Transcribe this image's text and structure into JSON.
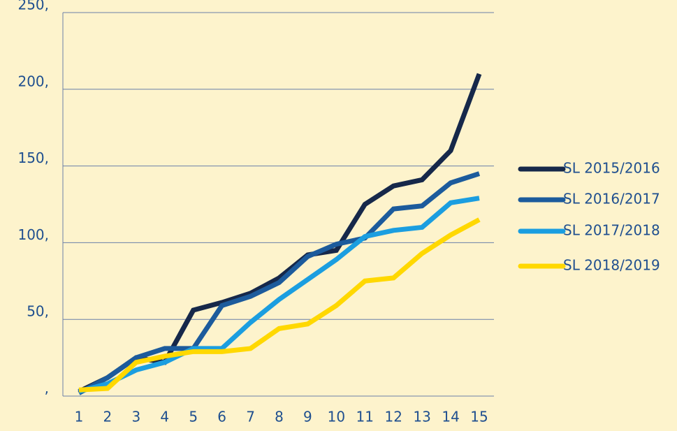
{
  "chart_data": {
    "type": "line",
    "categories": [
      "1",
      "2",
      "3",
      "4",
      "5",
      "6",
      "7",
      "8",
      "9",
      "10",
      "11",
      "12",
      "13",
      "14",
      "15"
    ],
    "series": [
      {
        "name": "SL 2015/2016",
        "color": "#16284a",
        "values": [
          3,
          12,
          25,
          22,
          56,
          61,
          67,
          77,
          92,
          95,
          125,
          137,
          141,
          160,
          210
        ]
      },
      {
        "name": "SL 2016/2017",
        "color": "#1c5b9c",
        "values": [
          2,
          12,
          25,
          31,
          31,
          59,
          65,
          74,
          91,
          99,
          103,
          122,
          124,
          139,
          145
        ]
      },
      {
        "name": "SL 2017/2018",
        "color": "#1b9ee0",
        "values": [
          3,
          8,
          17,
          22,
          31,
          31,
          48,
          63,
          76,
          89,
          104,
          108,
          110,
          126,
          129
        ]
      },
      {
        "name": "SL 2018/2019",
        "color": "#ffd800",
        "values": [
          4,
          5,
          22,
          26,
          29,
          29,
          31,
          44,
          47,
          59,
          75,
          77,
          93,
          105,
          115
        ]
      }
    ],
    "ylim": [
      0,
      250
    ],
    "yticks": [
      {
        "value": 0,
        "label": ","
      },
      {
        "value": 50,
        "label": "50,"
      },
      {
        "value": 100,
        "label": "100,"
      },
      {
        "value": 150,
        "label": "150,"
      },
      {
        "value": 200,
        "label": "200,"
      },
      {
        "value": 250,
        "label": "250,"
      }
    ],
    "grid": true,
    "legend": "right"
  }
}
